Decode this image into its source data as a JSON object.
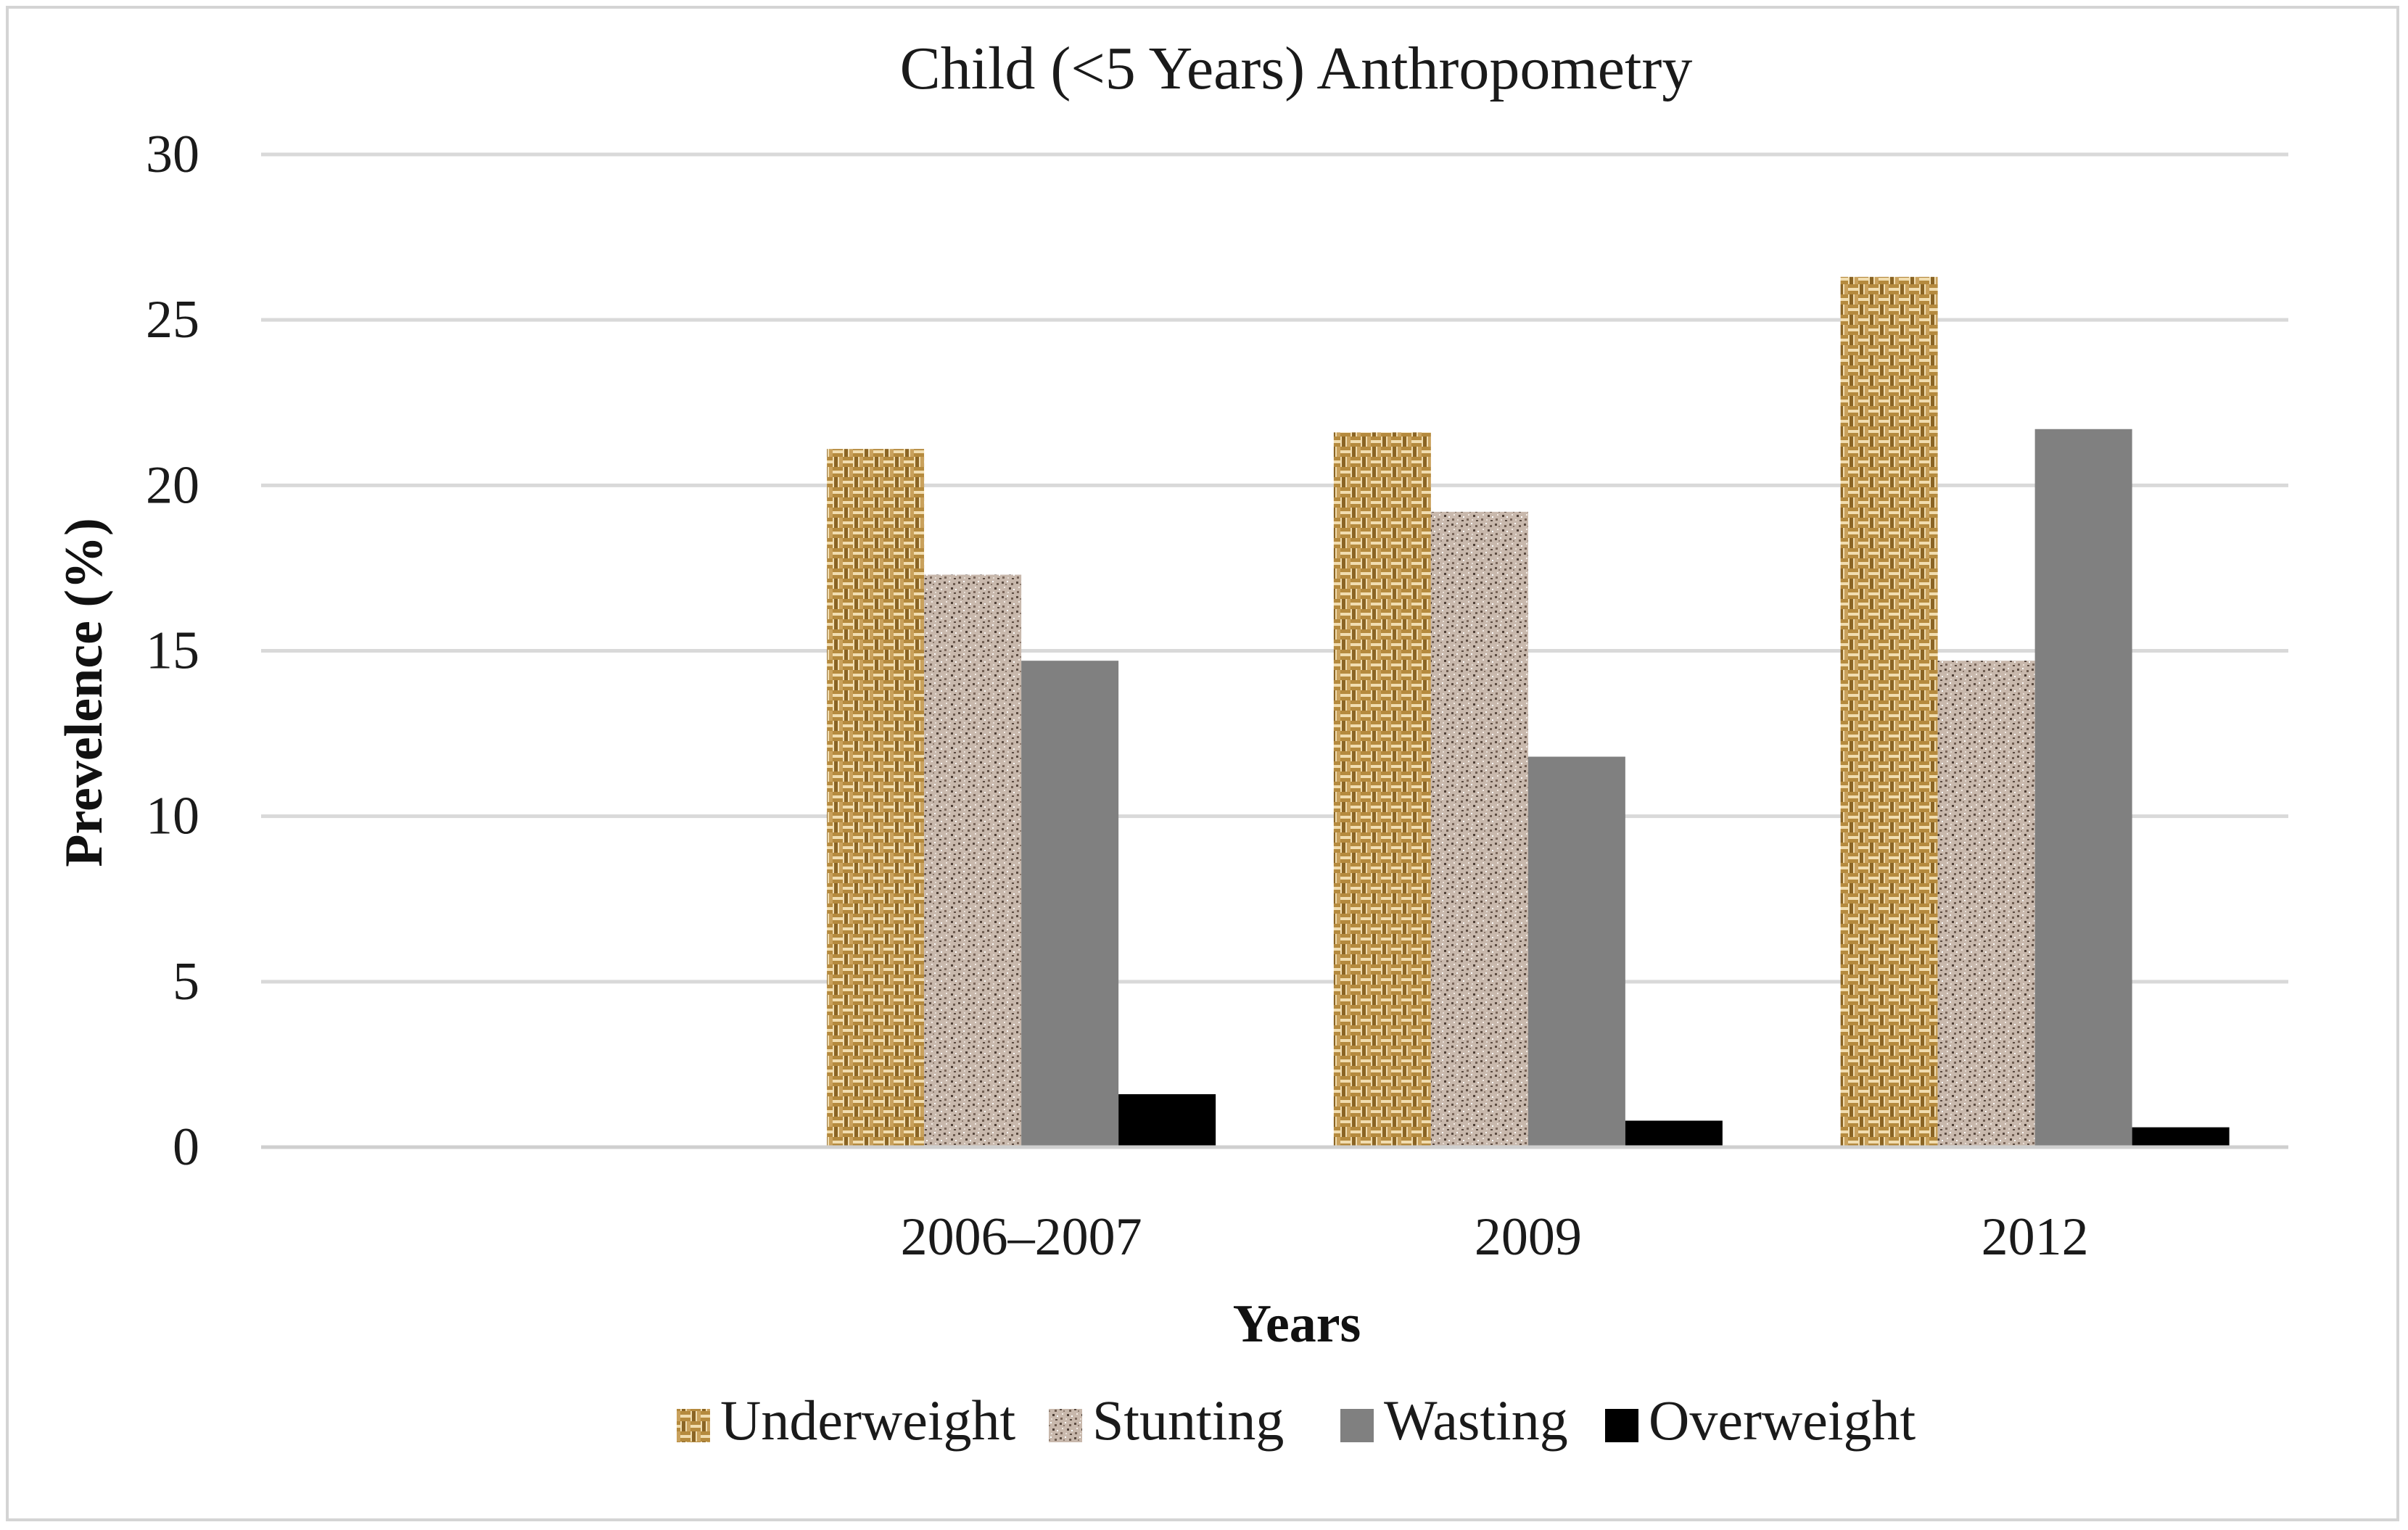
{
  "chart_data": {
    "type": "bar",
    "title": "Child (<5 Years) Anthropometry",
    "xlabel": "Years",
    "ylabel": "Prevelence (%)",
    "ylim": [
      0,
      30
    ],
    "yticks": [
      "0",
      "5",
      "10",
      "15",
      "20",
      "25",
      "30"
    ],
    "ytick_values": [
      0,
      5,
      10,
      15,
      20,
      25,
      30
    ],
    "categories": [
      "",
      "2006–2007",
      "2009",
      "2012"
    ],
    "grid": true,
    "legend_position": "bottom",
    "series": [
      {
        "name": "Underweight",
        "values": [
          null,
          21.1,
          21.6,
          26.3
        ],
        "color": "#c9a15c",
        "pattern": "weave"
      },
      {
        "name": "Stunting",
        "values": [
          null,
          17.3,
          19.2,
          14.7
        ],
        "color": "#a8968a",
        "pattern": "speckle"
      },
      {
        "name": "Wasting",
        "values": [
          null,
          14.7,
          11.8,
          21.7
        ],
        "color": "#808080",
        "pattern": "solid"
      },
      {
        "name": "Overweight",
        "values": [
          null,
          1.6,
          0.8,
          0.6
        ],
        "color": "#000000",
        "pattern": "solid"
      }
    ]
  }
}
